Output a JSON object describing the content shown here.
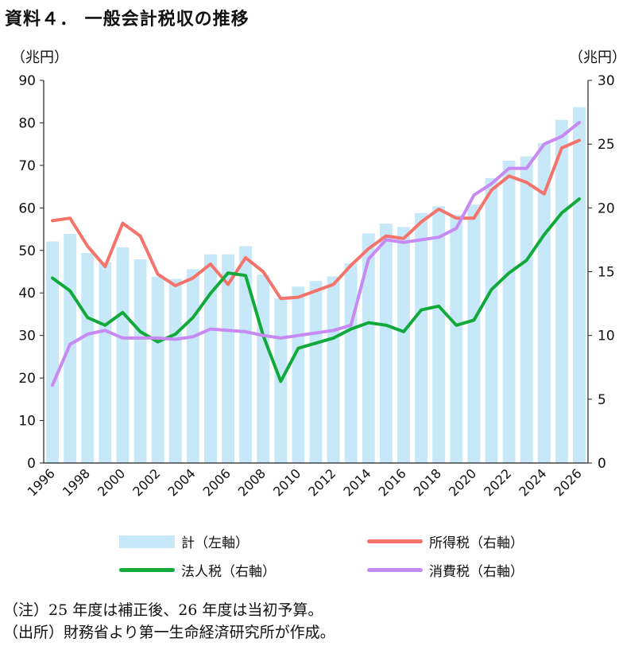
{
  "title": "資料４． 一般会計税収の推移",
  "left_unit": "（兆円）",
  "right_unit": "（兆円）",
  "notes": [
    "（注）25 年度は補正後、26 年度は当初予算。",
    "（出所）財務省より第一生命経済研究所が作成。"
  ],
  "colors": {
    "total": "#c7e8f8",
    "income": "#f4736a",
    "corporate": "#12a93b",
    "consumption": "#c68af2"
  },
  "chart_data": {
    "type": "bar",
    "title": "資料４． 一般会計税収の推移",
    "xlabel": "",
    "ylabel": "（兆円）",
    "y2label": "（兆円）",
    "ylim": [
      0,
      90
    ],
    "y2lim": [
      0,
      30
    ],
    "yticks": [
      "0",
      "10",
      "20",
      "30",
      "40",
      "50",
      "60",
      "70",
      "80",
      "90"
    ],
    "y2ticks": [
      "0",
      "5",
      "10",
      "15",
      "20",
      "25",
      "30"
    ],
    "x": [
      1996,
      1997,
      1998,
      1999,
      2000,
      2001,
      2002,
      2003,
      2004,
      2005,
      2006,
      2007,
      2008,
      2009,
      2010,
      2011,
      2012,
      2013,
      2014,
      2015,
      2016,
      2017,
      2018,
      2019,
      2020,
      2021,
      2022,
      2023,
      2024,
      2025,
      2026
    ],
    "xtick_labels": [
      "1996",
      "1998",
      "2000",
      "2002",
      "2004",
      "2006",
      "2008",
      "2010",
      "2012",
      "2014",
      "2016",
      "2018",
      "2020",
      "2022",
      "2024",
      "2026"
    ],
    "series": [
      {
        "name": "計（左軸）",
        "axis": "left",
        "kind": "bar",
        "values": [
          52.1,
          53.9,
          49.4,
          47.2,
          50.7,
          47.9,
          43.8,
          43.3,
          45.6,
          49.1,
          49.1,
          51.0,
          44.3,
          38.7,
          41.5,
          42.8,
          43.9,
          47.0,
          54.0,
          56.3,
          55.5,
          58.8,
          60.4,
          58.4,
          60.8,
          67.0,
          71.1,
          72.1,
          75.2,
          80.7,
          83.7
        ]
      },
      {
        "name": "所得税（右軸）",
        "axis": "right",
        "kind": "line",
        "values": [
          19.0,
          19.2,
          17.0,
          15.4,
          18.8,
          17.8,
          14.8,
          13.9,
          14.5,
          15.6,
          14.0,
          16.1,
          15.0,
          12.9,
          13.0,
          13.5,
          14.0,
          15.5,
          16.8,
          17.8,
          17.6,
          18.9,
          19.9,
          19.2,
          19.2,
          21.4,
          22.5,
          22.0,
          21.1,
          24.7,
          25.3
        ]
      },
      {
        "name": "法人税（右軸）",
        "axis": "right",
        "kind": "line",
        "values": [
          14.5,
          13.5,
          11.4,
          10.8,
          11.8,
          10.3,
          9.5,
          10.1,
          11.4,
          13.3,
          14.9,
          14.7,
          10.0,
          6.4,
          9.0,
          9.4,
          9.8,
          10.5,
          11.0,
          10.8,
          10.3,
          12.0,
          12.3,
          10.8,
          11.2,
          13.6,
          14.9,
          15.9,
          17.9,
          19.6,
          20.7
        ]
      },
      {
        "name": "消費税（右軸）",
        "axis": "right",
        "kind": "line",
        "values": [
          6.1,
          9.3,
          10.1,
          10.4,
          9.8,
          9.8,
          9.8,
          9.7,
          9.9,
          10.5,
          10.4,
          10.3,
          10.0,
          9.8,
          10.0,
          10.2,
          10.4,
          10.8,
          16.0,
          17.5,
          17.3,
          17.5,
          17.7,
          18.4,
          21.0,
          21.9,
          23.1,
          23.1,
          25.0,
          25.6,
          26.7
        ]
      }
    ]
  },
  "legend": [
    {
      "label": "計（左軸）"
    },
    {
      "label": "所得税（右軸）"
    },
    {
      "label": "法人税（右軸）"
    },
    {
      "label": "消費税（右軸）"
    }
  ]
}
